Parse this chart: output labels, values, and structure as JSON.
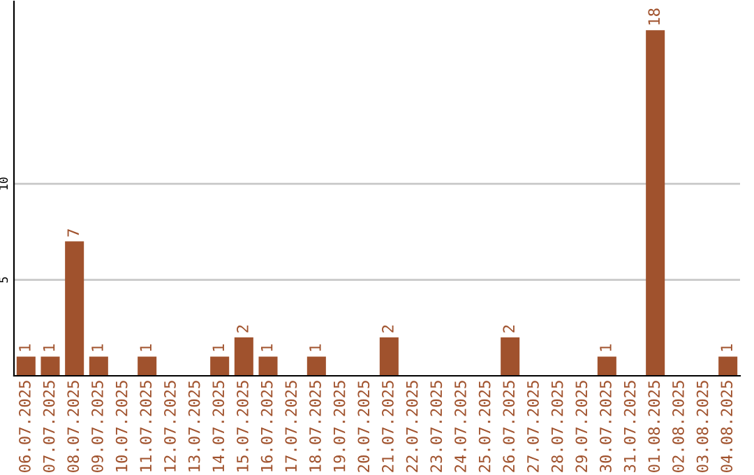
{
  "chart_data": {
    "type": "bar",
    "categories": [
      "06.07.2025",
      "07.07.2025",
      "08.07.2025",
      "09.07.2025",
      "10.07.2025",
      "11.07.2025",
      "12.07.2025",
      "13.07.2025",
      "14.07.2025",
      "15.07.2025",
      "16.07.2025",
      "17.07.2025",
      "18.07.2025",
      "19.07.2025",
      "20.07.2025",
      "21.07.2025",
      "22.07.2025",
      "23.07.2025",
      "24.07.2025",
      "25.07.2025",
      "26.07.2025",
      "27.07.2025",
      "28.07.2025",
      "29.07.2025",
      "30.07.2025",
      "31.07.2025",
      "01.08.2025",
      "02.08.2025",
      "03.08.2025",
      "04.08.2025"
    ],
    "values": [
      1,
      1,
      7,
      1,
      0,
      1,
      0,
      0,
      1,
      2,
      1,
      0,
      1,
      0,
      0,
      2,
      0,
      0,
      0,
      0,
      2,
      0,
      0,
      0,
      1,
      0,
      18,
      0,
      0,
      1
    ],
    "value_labels": [
      "1",
      "1",
      "7",
      "1",
      null,
      "1",
      null,
      null,
      "1",
      "2",
      "1",
      null,
      "1",
      null,
      null,
      "2",
      null,
      null,
      null,
      null,
      "2",
      null,
      null,
      null,
      "1",
      null,
      "18",
      null,
      null,
      "1"
    ],
    "color": "#a0522d",
    "ylim": [
      0,
      19.5
    ],
    "yticks": [
      5,
      10
    ],
    "grid": "y"
  }
}
